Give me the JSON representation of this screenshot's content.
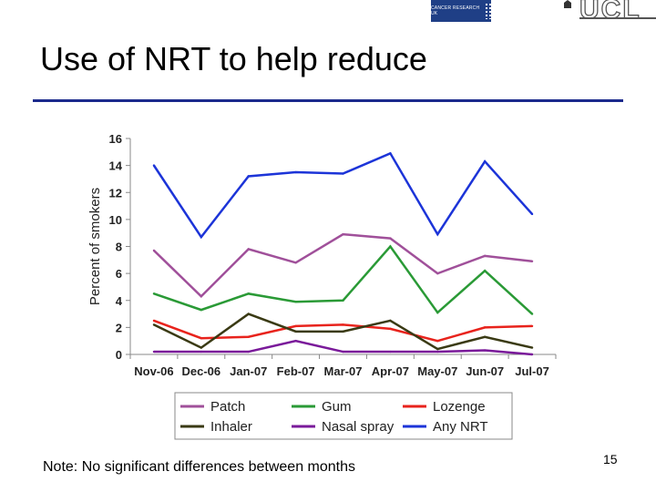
{
  "header": {
    "org_logo_text": "CANCER RESEARCH UK",
    "ucl_logo_text": "UCL"
  },
  "slide": {
    "title": "Use of NRT to help reduce",
    "note": "Note: No significant differences between months",
    "page_number": "15"
  },
  "chart_data": {
    "type": "line",
    "categories": [
      "Nov-06",
      "Dec-06",
      "Jan-07",
      "Feb-07",
      "Mar-07",
      "Apr-07",
      "May-07",
      "Jun-07",
      "Jul-07"
    ],
    "series": [
      {
        "name": "Patch",
        "color": "#a0509a",
        "values": [
          7.7,
          4.3,
          7.8,
          6.8,
          8.9,
          8.6,
          6.0,
          7.3,
          6.9
        ]
      },
      {
        "name": "Gum",
        "color": "#2a9a36",
        "values": [
          4.5,
          3.3,
          4.5,
          3.9,
          4.0,
          8.0,
          3.1,
          6.2,
          3.0
        ]
      },
      {
        "name": "Lozenge",
        "color": "#e8231c",
        "values": [
          2.5,
          1.2,
          1.3,
          2.1,
          2.2,
          1.9,
          1.0,
          2.0,
          2.1
        ]
      },
      {
        "name": "Inhaler",
        "color": "#3a3a14",
        "values": [
          2.2,
          0.5,
          3.0,
          1.7,
          1.7,
          2.5,
          0.4,
          1.3,
          0.5
        ]
      },
      {
        "name": "Nasal spray",
        "color": "#7a1a9a",
        "values": [
          0.2,
          0.2,
          0.2,
          1.0,
          0.2,
          0.2,
          0.2,
          0.3,
          0.0
        ]
      },
      {
        "name": "Any NRT",
        "color": "#1c34d8",
        "values": [
          14.0,
          8.7,
          13.2,
          13.5,
          13.4,
          14.9,
          8.9,
          14.3,
          10.4
        ]
      }
    ],
    "title": "",
    "xlabel": "",
    "ylabel": "Percent of smokers",
    "ylim": [
      0,
      16
    ],
    "yticks": [
      0,
      2,
      4,
      6,
      8,
      10,
      12,
      14,
      16
    ],
    "legend": "bottom",
    "grid": false
  }
}
